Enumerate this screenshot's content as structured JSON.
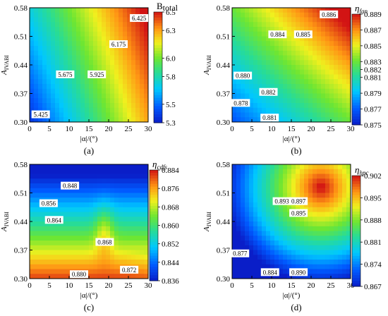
{
  "chart_data": [
    {
      "type": "heatmap",
      "panel_label": "(a)",
      "colorbar_title": "B",
      "colorbar_title_sub": "total",
      "colorbar_title_italic": false,
      "xlabel": "|α|/(°)",
      "ylabel": "A",
      "ylabel_sub": "IVABI",
      "xlim": [
        0,
        30
      ],
      "ylim": [
        0.3,
        0.58
      ],
      "xticks": [
        "0",
        "5",
        "10",
        "15",
        "20",
        "25",
        "30"
      ],
      "yticks": [
        "0.30",
        "0.37",
        "0.44",
        "0.51",
        "0.58"
      ],
      "cbar_ticks": [
        "5.3",
        "5.5",
        "5.8",
        "6.0",
        "6.3",
        "6.5"
      ],
      "cbar_range": [
        5.3,
        6.5
      ],
      "contour_labels": [
        {
          "text": "5.425",
          "x": 2.8,
          "y": 0.318
        },
        {
          "text": "5.675",
          "x": 9.0,
          "y": 0.416
        },
        {
          "text": "5.925",
          "x": 17.0,
          "y": 0.416
        },
        {
          "text": "6.175",
          "x": 22.5,
          "y": 0.49
        },
        {
          "text": "6.425",
          "x": 27.7,
          "y": 0.554
        }
      ]
    },
    {
      "type": "heatmap",
      "panel_label": "(b)",
      "colorbar_title": "η",
      "colorbar_title_sub": "fan",
      "colorbar_title_italic": true,
      "xlabel": "|α|/(°)",
      "ylabel": "A",
      "ylabel_sub": "IVABI",
      "xlim": [
        0,
        30
      ],
      "ylim": [
        0.3,
        0.58
      ],
      "xticks": [
        "0",
        "5",
        "10",
        "15",
        "20",
        "25",
        "30"
      ],
      "yticks": [
        "0.30",
        "0.37",
        "0.44",
        "0.51",
        "0.58"
      ],
      "cbar_ticks": [
        "0.875",
        "0.877",
        "0.879",
        "0.881",
        "0.882",
        "0.883",
        "0.885",
        "0.887",
        "0.889"
      ],
      "cbar_range": [
        0.875,
        0.889
      ],
      "contour_labels": [
        {
          "text": "0.886",
          "x": 24.5,
          "y": 0.563
        },
        {
          "text": "0.884",
          "x": 11.5,
          "y": 0.514
        },
        {
          "text": "0.885",
          "x": 18.0,
          "y": 0.514
        },
        {
          "text": "0.880",
          "x": 2.7,
          "y": 0.413
        },
        {
          "text": "0.882",
          "x": 9.2,
          "y": 0.373
        },
        {
          "text": "0.878",
          "x": 2.2,
          "y": 0.346
        },
        {
          "text": "0.881",
          "x": 9.5,
          "y": 0.31
        }
      ]
    },
    {
      "type": "heatmap",
      "panel_label": "(c)",
      "colorbar_title": "η",
      "colorbar_title_sub": "cdfs",
      "colorbar_title_italic": true,
      "xlabel": "|α|/(°)",
      "ylabel": "A",
      "ylabel_sub": "IVABI",
      "xlim": [
        0,
        30
      ],
      "ylim": [
        0.3,
        0.58
      ],
      "xticks": [
        "0",
        "5",
        "10",
        "15",
        "20",
        "25",
        "30"
      ],
      "yticks": [
        "0.30",
        "0.37",
        "0.44",
        "0.51",
        "0.58"
      ],
      "cbar_ticks": [
        "0.836",
        "0.844",
        "0.852",
        "0.860",
        "0.868",
        "0.876",
        "0.884"
      ],
      "cbar_range": [
        0.836,
        0.884
      ],
      "contour_labels": [
        {
          "text": "0.848",
          "x": 10.2,
          "y": 0.527
        },
        {
          "text": "0.856",
          "x": 4.8,
          "y": 0.484
        },
        {
          "text": "0.864",
          "x": 6.2,
          "y": 0.443
        },
        {
          "text": "0.868",
          "x": 19.0,
          "y": 0.389
        },
        {
          "text": "0.880",
          "x": 12.5,
          "y": 0.31
        },
        {
          "text": "0.872",
          "x": 25.2,
          "y": 0.321
        }
      ]
    },
    {
      "type": "heatmap",
      "panel_label": "(d)",
      "colorbar_title": "η",
      "colorbar_title_sub": "hpc",
      "colorbar_title_italic": true,
      "xlabel": "|α|/(°)",
      "ylabel": "A",
      "ylabel_sub": "IVABI",
      "xlim": [
        0,
        30
      ],
      "ylim": [
        0.3,
        0.58
      ],
      "xticks": [
        "0",
        "5",
        "10",
        "15",
        "20",
        "25",
        "30"
      ],
      "yticks": [
        "0.30",
        "0.37",
        "0.44",
        "0.51",
        "0.58"
      ],
      "cbar_ticks": [
        "0.867",
        "0.874",
        "0.881",
        "0.888",
        "0.895",
        "0.902"
      ],
      "cbar_range": [
        0.867,
        0.902
      ],
      "contour_labels": [
        {
          "text": "0.893",
          "x": 12.6,
          "y": 0.489
        },
        {
          "text": "0.897",
          "x": 16.8,
          "y": 0.489
        },
        {
          "text": "0.895",
          "x": 16.8,
          "y": 0.46
        },
        {
          "text": "0.877",
          "x": 2.0,
          "y": 0.361
        },
        {
          "text": "0.884",
          "x": 9.6,
          "y": 0.315
        },
        {
          "text": "0.890",
          "x": 16.8,
          "y": 0.315
        }
      ]
    }
  ]
}
